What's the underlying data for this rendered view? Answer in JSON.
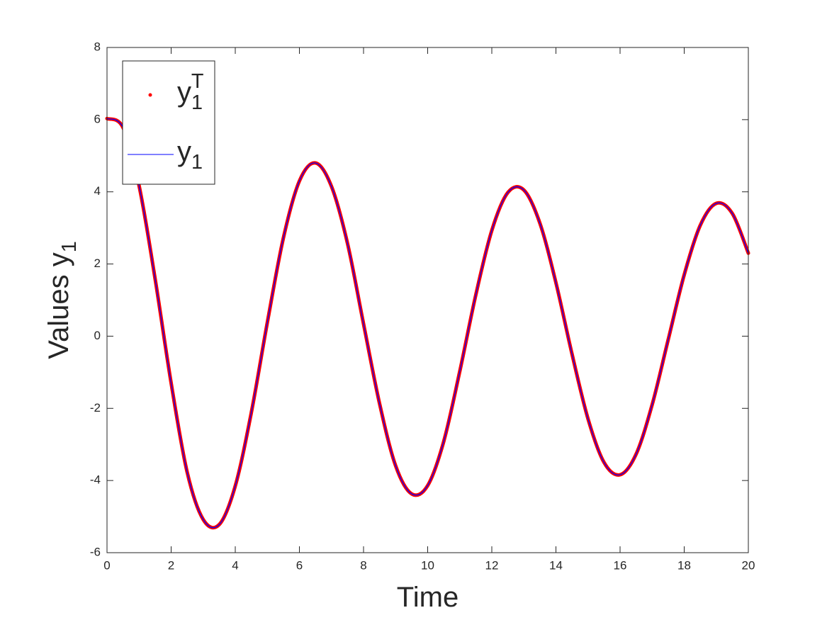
{
  "chart_data": {
    "type": "line",
    "xlabel": "Time",
    "ylabel": "Values y_1",
    "x": [
      0,
      0.5,
      1,
      1.5,
      2,
      2.5,
      3,
      3.5,
      4,
      4.5,
      5,
      5.5,
      6,
      6.5,
      7,
      7.5,
      8,
      8.5,
      9,
      9.5,
      10,
      10.5,
      11,
      11.5,
      12,
      12.5,
      13,
      13.5,
      14,
      14.5,
      15,
      15.5,
      16,
      16.5,
      17,
      17.5,
      18,
      18.5,
      19,
      19.5,
      20
    ],
    "series": [
      {
        "name": "y_1^T",
        "color": "#ff0000",
        "values": [
          6.03,
          5.78,
          4.17,
          1.59,
          -1.3,
          -3.77,
          -5.08,
          -5.22,
          -4.15,
          -2.12,
          0.38,
          2.72,
          4.3,
          4.8,
          4.15,
          2.57,
          0.34,
          -1.87,
          -3.59,
          -4.37,
          -4.14,
          -2.92,
          -0.98,
          1.14,
          2.93,
          3.98,
          4.05,
          3.13,
          1.48,
          -0.49,
          -2.29,
          -3.5,
          -3.84,
          -3.27,
          -1.9,
          -0.1,
          1.7,
          3.07,
          3.68,
          3.4,
          2.3
        ]
      },
      {
        "name": "y_1",
        "color": "#0000ff",
        "values": [
          6.03,
          5.78,
          4.17,
          1.59,
          -1.3,
          -3.77,
          -5.08,
          -5.22,
          -4.15,
          -2.12,
          0.38,
          2.72,
          4.3,
          4.8,
          4.15,
          2.57,
          0.34,
          -1.87,
          -3.59,
          -4.37,
          -4.14,
          -2.92,
          -0.98,
          1.14,
          2.93,
          3.98,
          4.05,
          3.13,
          1.48,
          -0.49,
          -2.29,
          -3.5,
          -3.84,
          -3.27,
          -1.9,
          -0.1,
          1.7,
          3.07,
          3.68,
          3.4,
          2.3
        ]
      }
    ],
    "xlim": [
      0,
      20
    ],
    "xticks": [
      0,
      2,
      4,
      6,
      8,
      10,
      12,
      14,
      16,
      18,
      20
    ],
    "ylim": [
      -6,
      8
    ],
    "yticks": [
      -6,
      -4,
      -2,
      0,
      2,
      4,
      6,
      8
    ],
    "grid": false,
    "legend": "northwest"
  }
}
